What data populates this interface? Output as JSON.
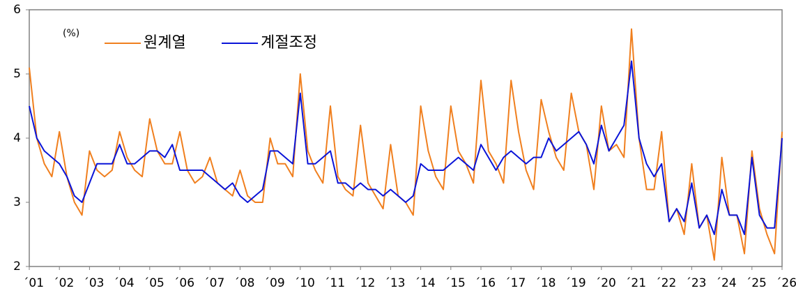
{
  "chart_data": {
    "type": "line",
    "unit_label": "(%)",
    "x": [
      2001,
      2001.25,
      2001.5,
      2001.75,
      2002,
      2002.25,
      2002.5,
      2002.75,
      2003,
      2003.25,
      2003.5,
      2003.75,
      2004,
      2004.25,
      2004.5,
      2004.75,
      2005,
      2005.25,
      2005.5,
      2005.75,
      2006,
      2006.25,
      2006.5,
      2006.75,
      2007,
      2007.25,
      2007.5,
      2007.75,
      2008,
      2008.25,
      2008.5,
      2008.75,
      2009,
      2009.25,
      2009.5,
      2009.75,
      2010,
      2010.25,
      2010.5,
      2010.75,
      2011,
      2011.25,
      2011.5,
      2011.75,
      2012,
      2012.25,
      2012.5,
      2012.75,
      2013,
      2013.25,
      2013.5,
      2013.75,
      2014,
      2014.25,
      2014.5,
      2014.75,
      2015,
      2015.25,
      2015.5,
      2015.75,
      2016,
      2016.25,
      2016.5,
      2016.75,
      2017,
      2017.25,
      2017.5,
      2017.75,
      2018,
      2018.25,
      2018.5,
      2018.75,
      2019,
      2019.25,
      2019.5,
      2019.75,
      2020,
      2020.25,
      2020.5,
      2020.75,
      2021,
      2021.25,
      2021.5,
      2021.75,
      2022,
      2022.25,
      2022.5,
      2022.75,
      2023,
      2023.25,
      2023.5,
      2023.75,
      2024,
      2024.25,
      2024.5,
      2024.75,
      2025,
      2025.25,
      2025.5,
      2025.75,
      2026
    ],
    "series": [
      {
        "name": "원계열",
        "color": "#f07f1e",
        "values": [
          5.1,
          4.0,
          3.6,
          3.4,
          4.1,
          3.4,
          3.0,
          2.8,
          3.8,
          3.5,
          3.4,
          3.5,
          4.1,
          3.7,
          3.5,
          3.4,
          4.3,
          3.8,
          3.6,
          3.6,
          4.1,
          3.5,
          3.3,
          3.4,
          3.7,
          3.3,
          3.2,
          3.1,
          3.5,
          3.1,
          3.0,
          3.0,
          4.0,
          3.6,
          3.6,
          3.4,
          5.0,
          3.8,
          3.5,
          3.3,
          4.5,
          3.4,
          3.2,
          3.1,
          4.2,
          3.3,
          3.1,
          2.9,
          3.9,
          3.1,
          3.0,
          2.8,
          4.5,
          3.8,
          3.4,
          3.2,
          4.5,
          3.8,
          3.6,
          3.3,
          4.9,
          3.8,
          3.6,
          3.3,
          4.9,
          4.1,
          3.5,
          3.2,
          4.6,
          4.1,
          3.7,
          3.5,
          4.7,
          4.1,
          3.9,
          3.2,
          4.5,
          3.8,
          3.9,
          3.7,
          5.7,
          4.0,
          3.2,
          3.2,
          4.1,
          2.7,
          2.9,
          2.5,
          3.6,
          2.6,
          2.8,
          2.1,
          3.7,
          2.8,
          2.8,
          2.2,
          3.8,
          2.9,
          2.5,
          2.2,
          4.1
        ]
      },
      {
        "name": "계절조정",
        "color": "#0a14d8",
        "values": [
          4.5,
          4.0,
          3.8,
          3.7,
          3.6,
          3.4,
          3.1,
          3.0,
          3.3,
          3.6,
          3.6,
          3.6,
          3.9,
          3.6,
          3.6,
          3.7,
          3.8,
          3.8,
          3.7,
          3.9,
          3.5,
          3.5,
          3.5,
          3.5,
          3.4,
          3.3,
          3.2,
          3.3,
          3.1,
          3.0,
          3.1,
          3.2,
          3.8,
          3.8,
          3.7,
          3.6,
          4.7,
          3.6,
          3.6,
          3.7,
          3.8,
          3.3,
          3.3,
          3.2,
          3.3,
          3.2,
          3.2,
          3.1,
          3.2,
          3.1,
          3.0,
          3.1,
          3.6,
          3.5,
          3.5,
          3.5,
          3.6,
          3.7,
          3.6,
          3.5,
          3.9,
          3.7,
          3.5,
          3.7,
          3.8,
          3.7,
          3.6,
          3.7,
          3.7,
          4.0,
          3.8,
          3.9,
          4.0,
          4.1,
          3.9,
          3.6,
          4.2,
          3.8,
          4.0,
          4.2,
          5.2,
          4.0,
          3.6,
          3.4,
          3.6,
          2.7,
          2.9,
          2.7,
          3.3,
          2.6,
          2.8,
          2.5,
          3.2,
          2.8,
          2.8,
          2.5,
          3.7,
          2.8,
          2.6,
          2.6,
          4.0
        ]
      }
    ],
    "xlim": [
      2001,
      2026
    ],
    "xticks": [
      {
        "value": 2001,
        "label": "´01"
      },
      {
        "value": 2002,
        "label": "´02"
      },
      {
        "value": 2003,
        "label": "´03"
      },
      {
        "value": 2004,
        "label": "´04"
      },
      {
        "value": 2005,
        "label": "´05"
      },
      {
        "value": 2006,
        "label": "´06"
      },
      {
        "value": 2007,
        "label": "´07"
      },
      {
        "value": 2008,
        "label": "´08"
      },
      {
        "value": 2009,
        "label": "´09"
      },
      {
        "value": 2010,
        "label": "´10"
      },
      {
        "value": 2011,
        "label": "´11"
      },
      {
        "value": 2012,
        "label": "´12"
      },
      {
        "value": 2013,
        "label": "´13"
      },
      {
        "value": 2014,
        "label": "´14"
      },
      {
        "value": 2015,
        "label": "´15"
      },
      {
        "value": 2016,
        "label": "´16"
      },
      {
        "value": 2017,
        "label": "´17"
      },
      {
        "value": 2018,
        "label": "´18"
      },
      {
        "value": 2019,
        "label": "´19"
      },
      {
        "value": 2020,
        "label": "´20"
      },
      {
        "value": 2021,
        "label": "´21"
      },
      {
        "value": 2022,
        "label": "´22"
      },
      {
        "value": 2023,
        "label": "´23"
      },
      {
        "value": 2024,
        "label": "´24"
      },
      {
        "value": 2025,
        "label": "´25"
      },
      {
        "value": 2026,
        "label": "´26"
      }
    ],
    "ylim": [
      2,
      6
    ],
    "yticks": [
      2,
      3,
      4,
      5,
      6
    ],
    "grid": false
  }
}
